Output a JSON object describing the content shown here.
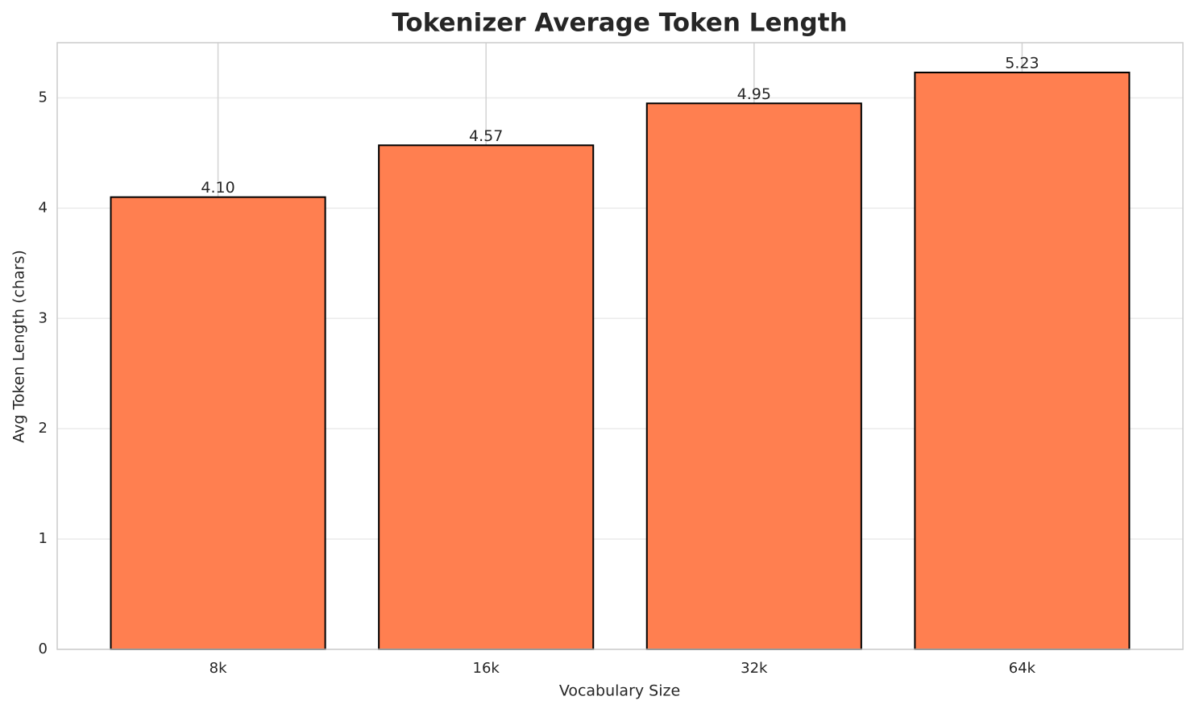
{
  "chart_data": {
    "type": "bar",
    "title": "Tokenizer Average Token Length",
    "xlabel": "Vocabulary Size",
    "ylabel": "Avg Token Length (chars)",
    "categories": [
      "8k",
      "16k",
      "32k",
      "64k"
    ],
    "values": [
      4.1,
      4.57,
      4.95,
      5.23
    ],
    "value_labels": [
      "4.10",
      "4.57",
      "4.95",
      "5.23"
    ],
    "color": "#ff7f50",
    "edgecolor": "#000000",
    "ylim": [
      0,
      5.5
    ],
    "yticks": [
      0,
      1,
      2,
      3,
      4,
      5
    ],
    "grid": true
  }
}
